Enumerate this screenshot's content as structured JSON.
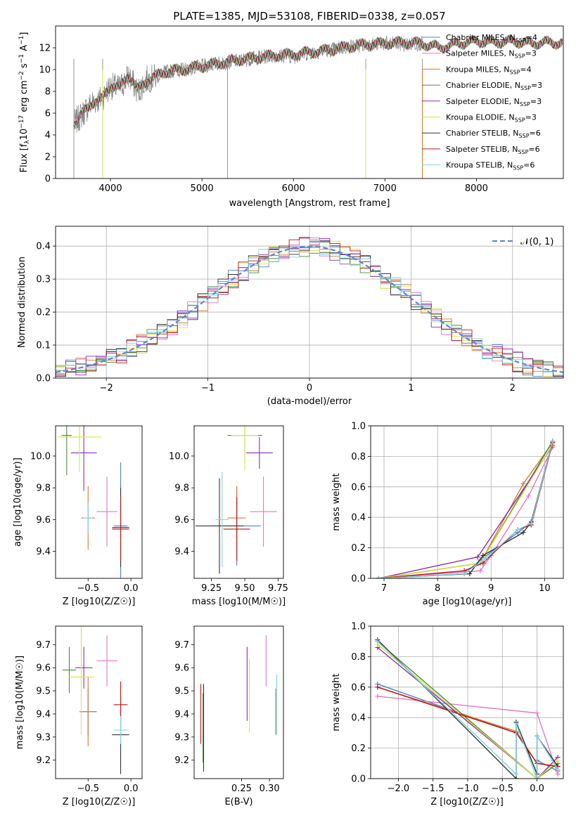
{
  "title": "PLATE=1385, MJD=53108, FIBERID=0338, z=0.057",
  "series_colors": [
    "#4f7fd0",
    "#e377c2",
    "#d97a2a",
    "#4a8a3a",
    "#8e2bb0",
    "#d7e34a",
    "#333333",
    "#b81818",
    "#7fd3e0"
  ],
  "chart_data": [
    {
      "id": "spectrum",
      "type": "line",
      "xlabel": "wavelength [Angstrom, rest frame]",
      "ylabel": "Flux [f_λ10^-17 erg cm^-2 s^-1 A^-1]",
      "xlim": [
        3400,
        8950
      ],
      "ylim": [
        0,
        14
      ],
      "xticks": [
        4000,
        5000,
        6000,
        7000,
        8000
      ],
      "yticks": [
        0,
        2,
        4,
        6,
        8,
        10,
        12
      ],
      "grid": false,
      "legend_position": "right",
      "legend": [
        {
          "name": "Chabrier MILES",
          "sub": "SSP",
          "n": "4"
        },
        {
          "name": "Salpeter MILES",
          "sub": "SSP",
          "n": "3"
        },
        {
          "name": "Kroupa MILES",
          "sub": "SSP",
          "n": "4"
        },
        {
          "name": "Chabrier ELODIE",
          "sub": "SSP",
          "n": "3"
        },
        {
          "name": "Salpeter ELODIE",
          "sub": "SSP",
          "n": "3"
        },
        {
          "name": "Kroupa ELODIE",
          "sub": "SSP",
          "n": "3"
        },
        {
          "name": "Chabrier STELIB",
          "sub": "SSP",
          "n": "6"
        },
        {
          "name": "Salpeter STELIB",
          "sub": "SSP",
          "n": "6"
        },
        {
          "name": "Kroupa STELIB",
          "sub": "SSP",
          "n": "6"
        }
      ],
      "data_series": {
        "name": "data",
        "color": "#808080",
        "x": [
          3600,
          3700,
          3800,
          3900,
          4000,
          4100,
          4200,
          4300,
          4400,
          4500,
          4600,
          4800,
          5000,
          5200,
          5400,
          5600,
          5800,
          6000,
          6200,
          6400,
          6600,
          6800,
          7000,
          7200,
          7400
        ],
        "y": [
          5.0,
          6.0,
          7.0,
          7.3,
          8.5,
          8.3,
          9.4,
          8.0,
          9.1,
          9.3,
          9.8,
          10.0,
          10.3,
          10.6,
          10.8,
          11.1,
          11.3,
          11.2,
          11.6,
          11.8,
          12.1,
          12.3,
          12.4,
          12.3,
          12.4
        ]
      },
      "model_series": {
        "x": [
          3600,
          3700,
          3800,
          3900,
          4000,
          4100,
          4200,
          4300,
          4400,
          4500,
          4600,
          4800,
          5000,
          5200,
          5400,
          5600,
          5800,
          6000,
          6200,
          6400,
          6600,
          6800,
          7000,
          7200,
          7400,
          7600,
          7800,
          8000,
          8200,
          8400,
          8600,
          8800,
          8950
        ],
        "y": [
          5.0,
          6.0,
          7.0,
          7.2,
          8.6,
          8.3,
          9.6,
          8.1,
          9.0,
          9.4,
          9.8,
          10.0,
          10.3,
          10.6,
          10.9,
          11.1,
          11.3,
          11.4,
          11.6,
          11.8,
          12.1,
          12.3,
          12.4,
          12.5,
          12.4,
          12.0,
          12.4,
          12.6,
          12.5,
          12.6,
          12.4,
          12.5,
          12.4
        ]
      }
    },
    {
      "id": "residuals",
      "type": "line",
      "xlabel": "(data-model)/error",
      "ylabel": "Normed distribution",
      "xlim": [
        -2.5,
        2.5
      ],
      "ylim": [
        0,
        0.46
      ],
      "xticks": [
        -2,
        -1,
        0,
        1,
        2
      ],
      "yticks": [
        0.0,
        0.1,
        0.2,
        0.3,
        0.4
      ],
      "grid": true,
      "legend_position": "top-right",
      "reference_curve": {
        "name": "𝒩(0, 1)",
        "mean": 0,
        "sigma": 1,
        "color": "#5b88d6"
      },
      "histogram_bins": [
        -2.5,
        -2.4,
        -2.3,
        -2.2,
        -2.1,
        -2.0,
        -1.9,
        -1.8,
        -1.7,
        -1.6,
        -1.5,
        -1.4,
        -1.3,
        -1.2,
        -1.1,
        -1.0,
        -0.9,
        -0.8,
        -0.7,
        -0.6,
        -0.5,
        -0.4,
        -0.3,
        -0.2,
        -0.1,
        0.0,
        0.1,
        0.2,
        0.3,
        0.4,
        0.5,
        0.6,
        0.7,
        0.8,
        0.9,
        1.0,
        1.1,
        1.2,
        1.3,
        1.4,
        1.5,
        1.6,
        1.7,
        1.8,
        1.9,
        2.0,
        2.1,
        2.2,
        2.3,
        2.4,
        2.5
      ]
    },
    {
      "id": "age-vs-Z",
      "type": "scatter",
      "xlabel": "Z [log10(Z/Z☉)]",
      "ylabel": "age [log10(age/yr)]",
      "xlim": [
        -0.88,
        0.13
      ],
      "ylim": [
        9.23,
        10.19
      ],
      "xticks": [
        -0.5,
        0.0
      ],
      "yticks": [
        9.4,
        9.6,
        9.8,
        10.0
      ],
      "points": [
        {
          "x": -0.12,
          "y": 9.56,
          "xerr": 0.08,
          "yerr": 0.4
        },
        {
          "x": -0.28,
          "y": 9.65,
          "xerr": 0.12,
          "yerr": 0.22
        },
        {
          "x": -0.5,
          "y": 9.61,
          "xerr": 0.08,
          "yerr": 0.2
        },
        {
          "x": -0.75,
          "y": 10.13,
          "xerr": 0.06,
          "yerr": 0.25
        },
        {
          "x": -0.55,
          "y": 10.02,
          "xerr": 0.15,
          "yerr": 0.24
        },
        {
          "x": -0.6,
          "y": 10.12,
          "xerr": 0.25,
          "yerr": 0.22
        },
        {
          "x": -0.12,
          "y": 9.55,
          "xerr": 0.1,
          "yerr": 0.25
        },
        {
          "x": -0.12,
          "y": 9.54,
          "xerr": 0.1,
          "yerr": 0.2
        },
        {
          "x": -0.5,
          "y": 9.61,
          "xerr": 0.05,
          "yerr": 0.1
        }
      ]
    },
    {
      "id": "age-vs-mass",
      "type": "scatter",
      "xlabel": "mass [log10(M/M☉)]",
      "ylabel": "",
      "xlim": [
        9.12,
        9.79
      ],
      "ylim": [
        9.23,
        10.19
      ],
      "xticks": [
        9.25,
        9.5,
        9.75
      ],
      "yticks": [
        9.4,
        9.6,
        9.8,
        10.0
      ],
      "points": [
        {
          "x": 9.44,
          "y": 9.56,
          "xerr": 0.18,
          "yerr": 0.25
        },
        {
          "x": 9.64,
          "y": 9.65,
          "xerr": 0.1,
          "yerr": 0.22
        },
        {
          "x": 9.44,
          "y": 9.61,
          "xerr": 0.07,
          "yerr": 0.2
        },
        {
          "x": 9.5,
          "y": 10.13,
          "xerr": 0.13,
          "yerr": 0.12
        },
        {
          "x": 9.61,
          "y": 10.02,
          "xerr": 0.1,
          "yerr": 0.1
        },
        {
          "x": 9.5,
          "y": 10.13,
          "xerr": 0.1,
          "yerr": 0.22
        },
        {
          "x": 9.31,
          "y": 9.56,
          "xerr": 0.18,
          "yerr": 0.3
        },
        {
          "x": 9.44,
          "y": 9.54,
          "xerr": 0.1,
          "yerr": 0.2
        },
        {
          "x": 9.33,
          "y": 9.6,
          "xerr": 0.05,
          "yerr": 0.3
        }
      ]
    },
    {
      "id": "weight-vs-age",
      "type": "line",
      "xlabel": "age [log10(age/yr)]",
      "ylabel": "mass weight",
      "xlim": [
        6.75,
        10.35
      ],
      "ylim": [
        0,
        1.0
      ],
      "xticks": [
        7,
        8,
        9,
        10
      ],
      "yticks": [
        0.0,
        0.2,
        0.4,
        0.6,
        0.8,
        1.0
      ],
      "grid": true,
      "series": [
        {
          "x": [
            6.9,
            8.5,
            8.8,
            9.5,
            9.75,
            10.15
          ],
          "y": [
            0.0,
            0.03,
            0.12,
            0.3,
            0.37,
            0.9
          ]
        },
        {
          "x": [
            6.9,
            8.8,
            9.0,
            9.7,
            10.15
          ],
          "y": [
            0.0,
            0.05,
            0.15,
            0.54,
            0.86
          ]
        },
        {
          "x": [
            6.9,
            8.8,
            9.6,
            10.15
          ],
          "y": [
            0.0,
            0.1,
            0.62,
            0.89
          ]
        },
        {
          "x": [
            6.9,
            8.8,
            10.15
          ],
          "y": [
            0.0,
            0.1,
            0.9
          ]
        },
        {
          "x": [
            6.9,
            8.75,
            10.15
          ],
          "y": [
            0.0,
            0.14,
            0.87
          ]
        },
        {
          "x": [
            6.9,
            8.8,
            10.15
          ],
          "y": [
            0.0,
            0.1,
            0.88
          ]
        },
        {
          "x": [
            6.9,
            8.6,
            8.85,
            9.6,
            9.75,
            10.15
          ],
          "y": [
            0.0,
            0.03,
            0.15,
            0.3,
            0.37,
            0.9
          ]
        },
        {
          "x": [
            6.9,
            8.5,
            8.85,
            9.5,
            9.75,
            10.15
          ],
          "y": [
            0.0,
            0.05,
            0.1,
            0.32,
            0.35,
            0.89
          ]
        },
        {
          "x": [
            6.9,
            8.5,
            8.9,
            9.5,
            9.75,
            10.15
          ],
          "y": [
            0.0,
            0.03,
            0.13,
            0.32,
            0.36,
            0.9
          ]
        }
      ]
    },
    {
      "id": "mass-vs-Z",
      "type": "scatter",
      "xlabel": "Z [log10(Z/Z☉)]",
      "ylabel": "mass [log10(M/M☉)]",
      "xlim": [
        -0.88,
        0.13
      ],
      "ylim": [
        9.12,
        9.78
      ],
      "xticks": [
        -0.5,
        0.0
      ],
      "yticks": [
        9.2,
        9.3,
        9.4,
        9.5,
        9.6,
        9.7
      ],
      "points": [
        {
          "x": -0.5,
          "y": 9.41,
          "xerr": 0.1,
          "yerr": 0.1
        },
        {
          "x": -0.28,
          "y": 9.63,
          "xerr": 0.12,
          "yerr": 0.11
        },
        {
          "x": -0.5,
          "y": 9.41,
          "xerr": 0.1,
          "yerr": 0.15
        },
        {
          "x": -0.72,
          "y": 9.59,
          "xerr": 0.08,
          "yerr": 0.1
        },
        {
          "x": -0.55,
          "y": 9.6,
          "xerr": 0.1,
          "yerr": 0.09
        },
        {
          "x": -0.58,
          "y": 9.56,
          "xerr": 0.15,
          "yerr": 0.25
        },
        {
          "x": -0.12,
          "y": 9.31,
          "xerr": 0.1,
          "yerr": 0.17
        },
        {
          "x": -0.12,
          "y": 9.44,
          "xerr": 0.08,
          "yerr": 0.1
        },
        {
          "x": -0.12,
          "y": 9.33,
          "xerr": 0.08,
          "yerr": 0.06
        }
      ]
    },
    {
      "id": "mass-vs-EBV",
      "type": "scatter",
      "xlabel": "E(B-V)",
      "ylabel": "",
      "xlim": [
        0.165,
        0.325
      ],
      "ylim": [
        9.12,
        9.78
      ],
      "xticks": [
        0.25,
        0.3
      ],
      "yticks": [
        9.2,
        9.3,
        9.4,
        9.5,
        9.6,
        9.7
      ],
      "points": [
        {
          "x": 0.313,
          "y": 9.44,
          "xerr": 0,
          "yerr": 0.13
        },
        {
          "x": 0.294,
          "y": 9.63,
          "xerr": 0,
          "yerr": 0.11
        },
        {
          "x": 0.311,
          "y": 9.41,
          "xerr": 0,
          "yerr": 0.1
        },
        {
          "x": 0.181,
          "y": 9.34,
          "xerr": 0,
          "yerr": 0.15
        },
        {
          "x": 0.26,
          "y": 9.53,
          "xerr": 0,
          "yerr": 0.16
        },
        {
          "x": 0.264,
          "y": 9.48,
          "xerr": 0,
          "yerr": 0.16
        },
        {
          "x": 0.182,
          "y": 9.34,
          "xerr": 0,
          "yerr": 0.19
        },
        {
          "x": 0.177,
          "y": 9.4,
          "xerr": 0,
          "yerr": 0.13
        },
        {
          "x": 0.313,
          "y": 9.44,
          "xerr": 0,
          "yerr": 0.13
        }
      ]
    },
    {
      "id": "weight-vs-Z",
      "type": "line",
      "xlabel": "Z [log10(Z/Z☉)]",
      "ylabel": "mass weight",
      "xlim": [
        -2.4,
        0.38
      ],
      "ylim": [
        0,
        1.0
      ],
      "xticks": [
        -2.0,
        -1.5,
        -1.0,
        -0.5,
        0.0
      ],
      "yticks": [
        0.0,
        0.2,
        0.4,
        0.6,
        0.8,
        1.0
      ],
      "grid": true,
      "series": [
        {
          "x": [
            -2.3,
            -0.3,
            -0.3,
            0.0,
            0.0,
            0.3
          ],
          "y": [
            0.62,
            0.3,
            0.37,
            0.03,
            0.12,
            0.05
          ]
        },
        {
          "x": [
            -2.3,
            0.0,
            0.3
          ],
          "y": [
            0.54,
            0.43,
            0.03
          ]
        },
        {
          "x": [
            -2.3,
            -0.3,
            0.0,
            0.3
          ],
          "y": [
            0.6,
            0.31,
            0.1,
            0.08
          ]
        },
        {
          "x": [
            -2.3,
            0.0,
            0.3
          ],
          "y": [
            0.9,
            0.0,
            0.1
          ]
        },
        {
          "x": [
            -2.3,
            0.0,
            0.3
          ],
          "y": [
            0.86,
            0.0,
            0.14
          ]
        },
        {
          "x": [
            -2.3,
            0.0,
            0.3
          ],
          "y": [
            0.88,
            0.0,
            0.12
          ]
        },
        {
          "x": [
            -2.3,
            -0.3,
            -0.3,
            0.0,
            0.0,
            0.3
          ],
          "y": [
            0.91,
            0.0,
            0.37,
            0.03,
            0.28,
            0.08
          ]
        },
        {
          "x": [
            -2.3,
            -0.3,
            0.0,
            0.3
          ],
          "y": [
            0.6,
            0.3,
            0.1,
            0.08
          ]
        },
        {
          "x": [
            -2.3,
            -0.3,
            -0.3,
            0.0,
            0.0,
            0.3
          ],
          "y": [
            0.9,
            0.03,
            0.36,
            0.0,
            0.28,
            0.06
          ]
        }
      ]
    }
  ]
}
